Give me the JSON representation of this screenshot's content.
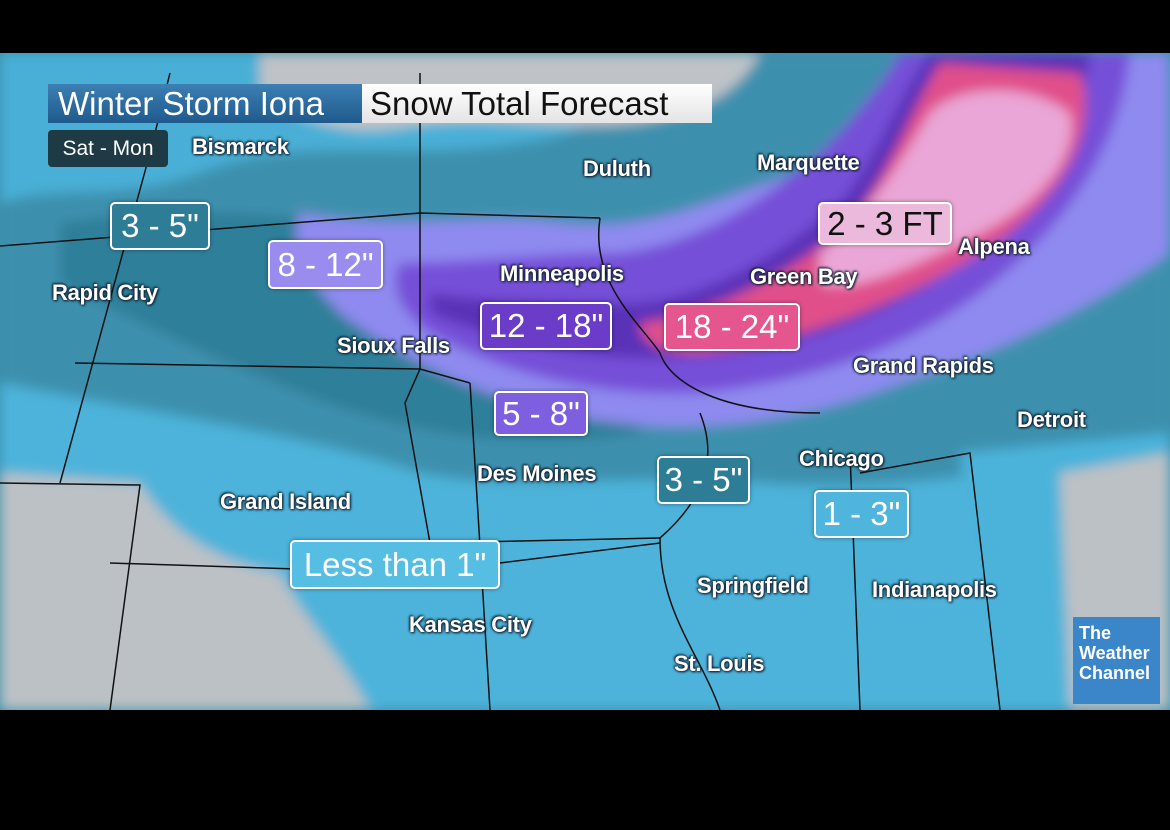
{
  "header": {
    "storm_name": "Winter Storm Iona",
    "product": "Snow Total Forecast",
    "period": "Sat - Mon"
  },
  "cities": [
    {
      "name": "Bismarck"
    },
    {
      "name": "Duluth"
    },
    {
      "name": "Marquette"
    },
    {
      "name": "Alpena"
    },
    {
      "name": "Rapid City"
    },
    {
      "name": "Minneapolis"
    },
    {
      "name": "Green Bay"
    },
    {
      "name": "Sioux Falls"
    },
    {
      "name": "Grand Rapids"
    },
    {
      "name": "Detroit"
    },
    {
      "name": "Des Moines"
    },
    {
      "name": "Chicago"
    },
    {
      "name": "Grand Island"
    },
    {
      "name": "Springfield"
    },
    {
      "name": "Indianapolis"
    },
    {
      "name": "Kansas City"
    },
    {
      "name": "St. Louis"
    }
  ],
  "snow_totals": [
    {
      "label": "3 - 5\"",
      "color": "#2e7d97"
    },
    {
      "label": "8 - 12\"",
      "color": "#9a8cef"
    },
    {
      "label": "12 - 18\"",
      "color": "#6a3cc8"
    },
    {
      "label": "18 - 24\"",
      "color": "#e5568e"
    },
    {
      "label": "2 - 3 FT",
      "color": "#eab9dc"
    },
    {
      "label": "5 - 8\"",
      "color": "#7d5fe0"
    },
    {
      "label": "3 - 5\"",
      "color": "#2e7d97"
    },
    {
      "label": "1 - 3\"",
      "color": "#4fb5dc"
    },
    {
      "label": "Less than 1\"",
      "color": "#56bde3"
    }
  ],
  "logo": {
    "line1": "The",
    "line2": "Weather",
    "line3": "Channel",
    "color": "#3a86c8"
  }
}
